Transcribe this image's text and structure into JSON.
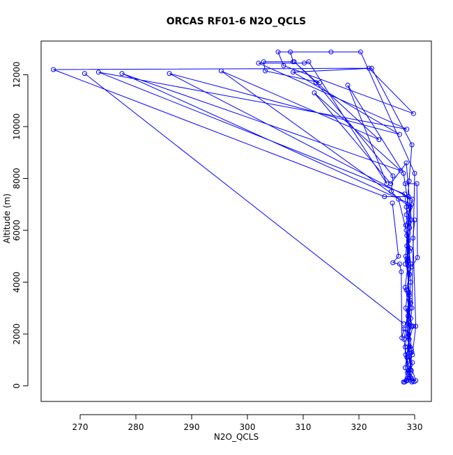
{
  "chart_data": {
    "type": "line",
    "title": "ORCAS RF01-6 N2O_QCLS",
    "xlabel": "N2O_QCLS",
    "ylabel": "Altitude (m)",
    "xlim": [
      263,
      333
    ],
    "ylim": [
      -600,
      13300
    ],
    "xticks": [
      270,
      280,
      290,
      300,
      310,
      320,
      330
    ],
    "yticks": [
      0,
      2000,
      4000,
      6000,
      8000,
      10000,
      12000
    ],
    "grid": false,
    "line_color": "#0000ff",
    "marker": "open-circle",
    "series": [
      {
        "points": [
          [
            328.2,
            150
          ],
          [
            328.6,
            200
          ],
          [
            329.4,
            300
          ],
          [
            328.9,
            600
          ],
          [
            329.6,
            900
          ],
          [
            328.4,
            1200
          ],
          [
            329.2,
            1500
          ],
          [
            328.7,
            1900
          ],
          [
            329.5,
            2300
          ],
          [
            328.8,
            2700
          ],
          [
            329.3,
            3200
          ],
          [
            328.5,
            3700
          ],
          [
            329.1,
            4300
          ],
          [
            328.3,
            4700
          ],
          [
            329.2,
            5300
          ],
          [
            328.6,
            5800
          ],
          [
            329.0,
            6300
          ],
          [
            328.5,
            6900
          ],
          [
            328.9,
            7300
          ],
          [
            324.6,
            7300
          ],
          [
            265.2,
            12200
          ],
          [
            321.8,
            12250
          ],
          [
            329.8,
            10500
          ],
          [
            306.5,
            12350
          ],
          [
            305.5,
            12880
          ],
          [
            315.0,
            12880
          ],
          [
            320.3,
            12880
          ],
          [
            330.0,
            8200
          ],
          [
            329.5,
            3000
          ],
          [
            329.0,
            1800
          ],
          [
            328.3,
            700
          ],
          [
            328.8,
            300
          ],
          [
            329.9,
            160
          ],
          [
            329.2,
            500
          ],
          [
            329.5,
            1300
          ],
          [
            328.4,
            2200
          ],
          [
            329.0,
            3500
          ],
          [
            328.6,
            4900
          ],
          [
            329.1,
            6100
          ],
          [
            328.2,
            7400
          ],
          [
            273.3,
            12100
          ],
          [
            328.6,
            9900
          ],
          [
            302.0,
            12450
          ],
          [
            310.2,
            12450
          ],
          [
            311.0,
            12500
          ],
          [
            325.0,
            7800
          ],
          [
            318.0,
            11600
          ],
          [
            328.0,
            8200
          ],
          [
            329.0,
            6800
          ],
          [
            328.4,
            5000
          ],
          [
            329.2,
            3300
          ],
          [
            328.1,
            1800
          ],
          [
            328.7,
            500
          ],
          [
            329.6,
            200
          ],
          [
            330.2,
            200
          ],
          [
            329.0,
            1000
          ],
          [
            328.7,
            2400
          ],
          [
            329.3,
            4000
          ],
          [
            328.9,
            5600
          ],
          [
            329.4,
            7000
          ],
          [
            277.5,
            12050
          ],
          [
            327.5,
            8300
          ],
          [
            312.0,
            11300
          ],
          [
            325.7,
            7800
          ],
          [
            328.5,
            8600
          ],
          [
            329.4,
            6400
          ],
          [
            328.7,
            4800
          ],
          [
            329.2,
            3000
          ],
          [
            328.3,
            1500
          ],
          [
            329.0,
            300
          ],
          [
            329.4,
            1400
          ],
          [
            328.8,
            2900
          ],
          [
            329.0,
            4500
          ],
          [
            328.4,
            6200
          ],
          [
            329.6,
            7200
          ],
          [
            286.0,
            12050
          ],
          [
            327.3,
            9700
          ],
          [
            308.2,
            12100
          ],
          [
            322.3,
            12250
          ],
          [
            329.5,
            9300
          ],
          [
            329.0,
            7900
          ],
          [
            328.5,
            6600
          ],
          [
            329.1,
            5200
          ],
          [
            328.3,
            3800
          ],
          [
            329.3,
            2600
          ],
          [
            328.6,
            1100
          ],
          [
            329.5,
            150
          ],
          [
            328.0,
            150
          ],
          [
            329.2,
            800
          ],
          [
            328.9,
            2000
          ],
          [
            329.0,
            3600
          ],
          [
            328.6,
            5400
          ],
          [
            329.2,
            6900
          ],
          [
            295.3,
            12150
          ],
          [
            323.6,
            9500
          ],
          [
            308.4,
            12500
          ],
          [
            312.3,
            11700
          ],
          [
            326.1,
            8100
          ],
          [
            325.8,
            7500
          ],
          [
            327.1,
            7200
          ],
          [
            328.5,
            6000
          ],
          [
            329.3,
            4700
          ],
          [
            328.4,
            3000
          ],
          [
            329.7,
            2300
          ],
          [
            328.7,
            1500
          ],
          [
            329.4,
            600
          ],
          [
            328.5,
            200
          ]
        ]
      },
      {
        "points": [
          [
            326.0,
            7050
          ],
          [
            327.1,
            5000
          ],
          [
            326.1,
            4750
          ],
          [
            327.3,
            4700
          ],
          [
            327.6,
            4400
          ],
          [
            327.7,
            1850
          ],
          [
            328.1,
            2200
          ]
        ]
      },
      {
        "points": [
          [
            270.8,
            12050
          ],
          [
            328.0,
            2400
          ]
        ]
      },
      {
        "points": [
          [
            307.7,
            12880
          ],
          [
            308.2,
            12500
          ],
          [
            302.9,
            12500
          ],
          [
            303.2,
            12150
          ],
          [
            313.0,
            11700
          ]
        ]
      },
      {
        "points": [
          [
            328.3,
            7800
          ],
          [
            330.4,
            7800
          ],
          [
            330.5,
            4950
          ],
          [
            329.5,
            4600
          ]
        ]
      },
      {
        "points": [
          [
            330.0,
            6400
          ],
          [
            329.7,
            5700
          ],
          [
            330.2,
            2300
          ],
          [
            329.6,
            1200
          ]
        ]
      }
    ]
  }
}
